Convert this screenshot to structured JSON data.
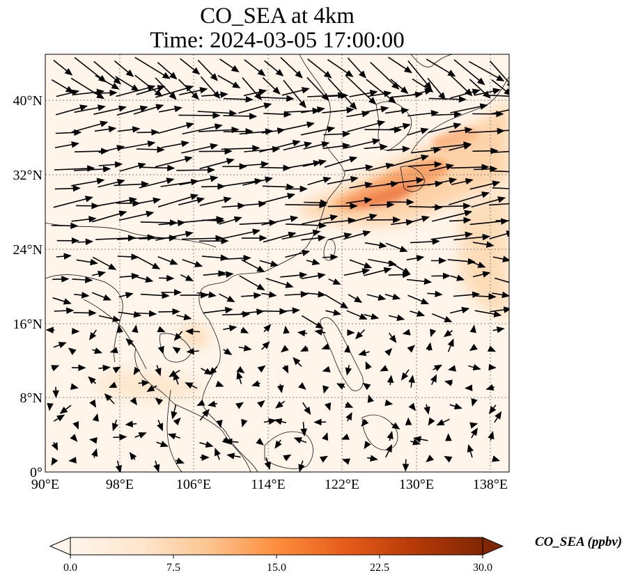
{
  "title_line1": "CO_SEA at 4km",
  "title_line2": "Time: 2024-03-05 17:00:00",
  "lat_ticks": [
    "40°N",
    "32°N",
    "24°N",
    "16°N",
    "8°N",
    "0°"
  ],
  "lon_ticks": [
    "90°E",
    "98°E",
    "106°E",
    "114°E",
    "122°E",
    "130°E",
    "138°E"
  ],
  "colorbar": {
    "label": "CO_SEA (ppbv)",
    "ticks": [
      "0.0",
      "7.5",
      "15.0",
      "22.5",
      "30.0"
    ],
    "colors": [
      "#fff5eb",
      "#fdd8b0",
      "#fdae6b",
      "#f16913",
      "#d94801",
      "#a63603",
      "#7f2704"
    ]
  }
}
